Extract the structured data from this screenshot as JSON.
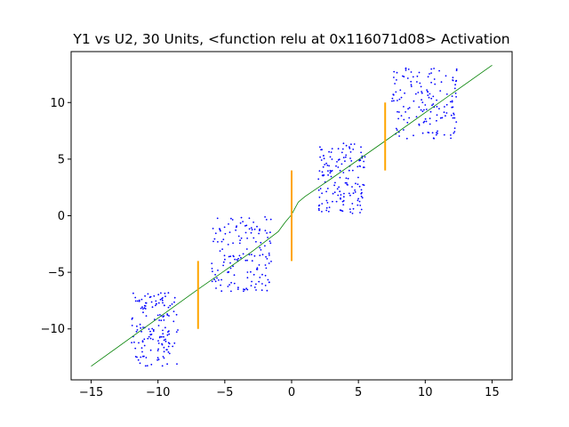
{
  "chart_data": {
    "type": "scatter",
    "title": "Y1 vs U2, 30 Units, <function relu at 0x116071d08> Activation",
    "xlabel": "",
    "ylabel": "",
    "xlim": [
      -16.5,
      16.5
    ],
    "ylim": [
      -14.5,
      14.5
    ],
    "grid": false,
    "legend": "none",
    "x_ticks": [
      -15,
      -10,
      -5,
      0,
      5,
      10,
      15
    ],
    "x_tick_labels": [
      "−15",
      "−10",
      "−5",
      "0",
      "5",
      "10",
      "15"
    ],
    "y_ticks": [
      -10,
      -5,
      0,
      5,
      10
    ],
    "y_tick_labels": [
      "−10",
      "−5",
      "0",
      "5",
      "10"
    ],
    "colors": {
      "points": "#0000ff",
      "fit": "#008000",
      "bars": "#ffa500"
    },
    "series": [
      {
        "kind": "scatter",
        "clusters": [
          {
            "x_range": [
              -12,
              -8.5
            ],
            "y_range": [
              -13.3,
              -6.8
            ],
            "count": 150
          },
          {
            "x_range": [
              -6,
              -1.5
            ],
            "y_range": [
              -6.7,
              -0.1
            ],
            "count": 150
          },
          {
            "x_range": [
              2,
              5.5
            ],
            "y_range": [
              0.2,
              6.6
            ],
            "count": 150
          },
          {
            "x_range": [
              7.5,
              12.5
            ],
            "y_range": [
              6.8,
              13.2
            ],
            "count": 150
          }
        ]
      },
      {
        "kind": "line",
        "x": [
          -15,
          -7,
          -3,
          -2,
          -1,
          -0.5,
          0,
          0.5,
          1,
          2,
          3,
          7,
          15
        ],
        "y": [
          -13.3,
          -6.5,
          -3.2,
          -2.3,
          -1.4,
          -0.6,
          0.1,
          1.2,
          1.7,
          2.5,
          3.3,
          6.6,
          13.3
        ]
      },
      {
        "kind": "vertical_segments",
        "segments": [
          {
            "x": -7,
            "y0": -10,
            "y1": -4
          },
          {
            "x": 0,
            "y0": -4,
            "y1": 4
          },
          {
            "x": 7,
            "y0": 4,
            "y1": 10
          }
        ]
      }
    ]
  }
}
